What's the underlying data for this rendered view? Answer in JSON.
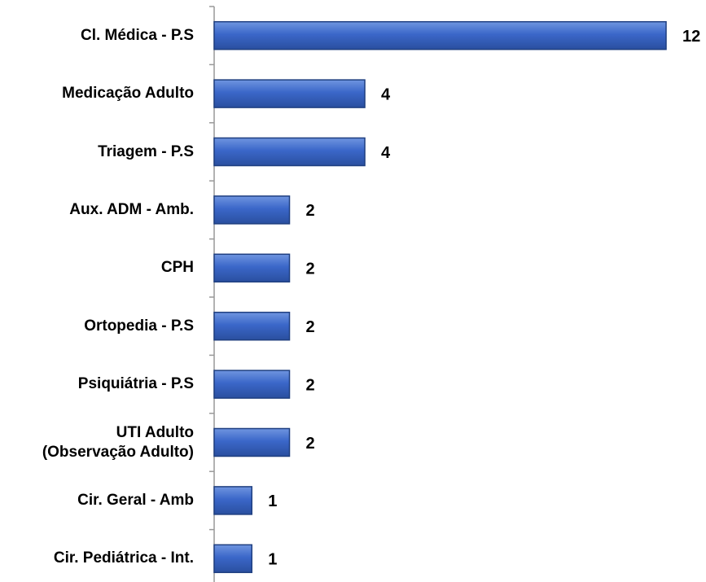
{
  "chart_data": {
    "type": "barh",
    "categories": [
      "Cl. Médica - P.S",
      "Medicação Adulto",
      "Triagem - P.S",
      "Aux. ADM - Amb.",
      "CPH",
      "Ortopedia - P.S",
      "Psiquiátria - P.S",
      "UTI Adulto\n(Observação Adulto)",
      "Cir. Geral - Amb",
      "Cir. Pediátrica - Int."
    ],
    "values": [
      12,
      4,
      4,
      2,
      2,
      2,
      2,
      2,
      1,
      1
    ],
    "color": "#3b67c9",
    "xlim": [
      0,
      12
    ]
  }
}
